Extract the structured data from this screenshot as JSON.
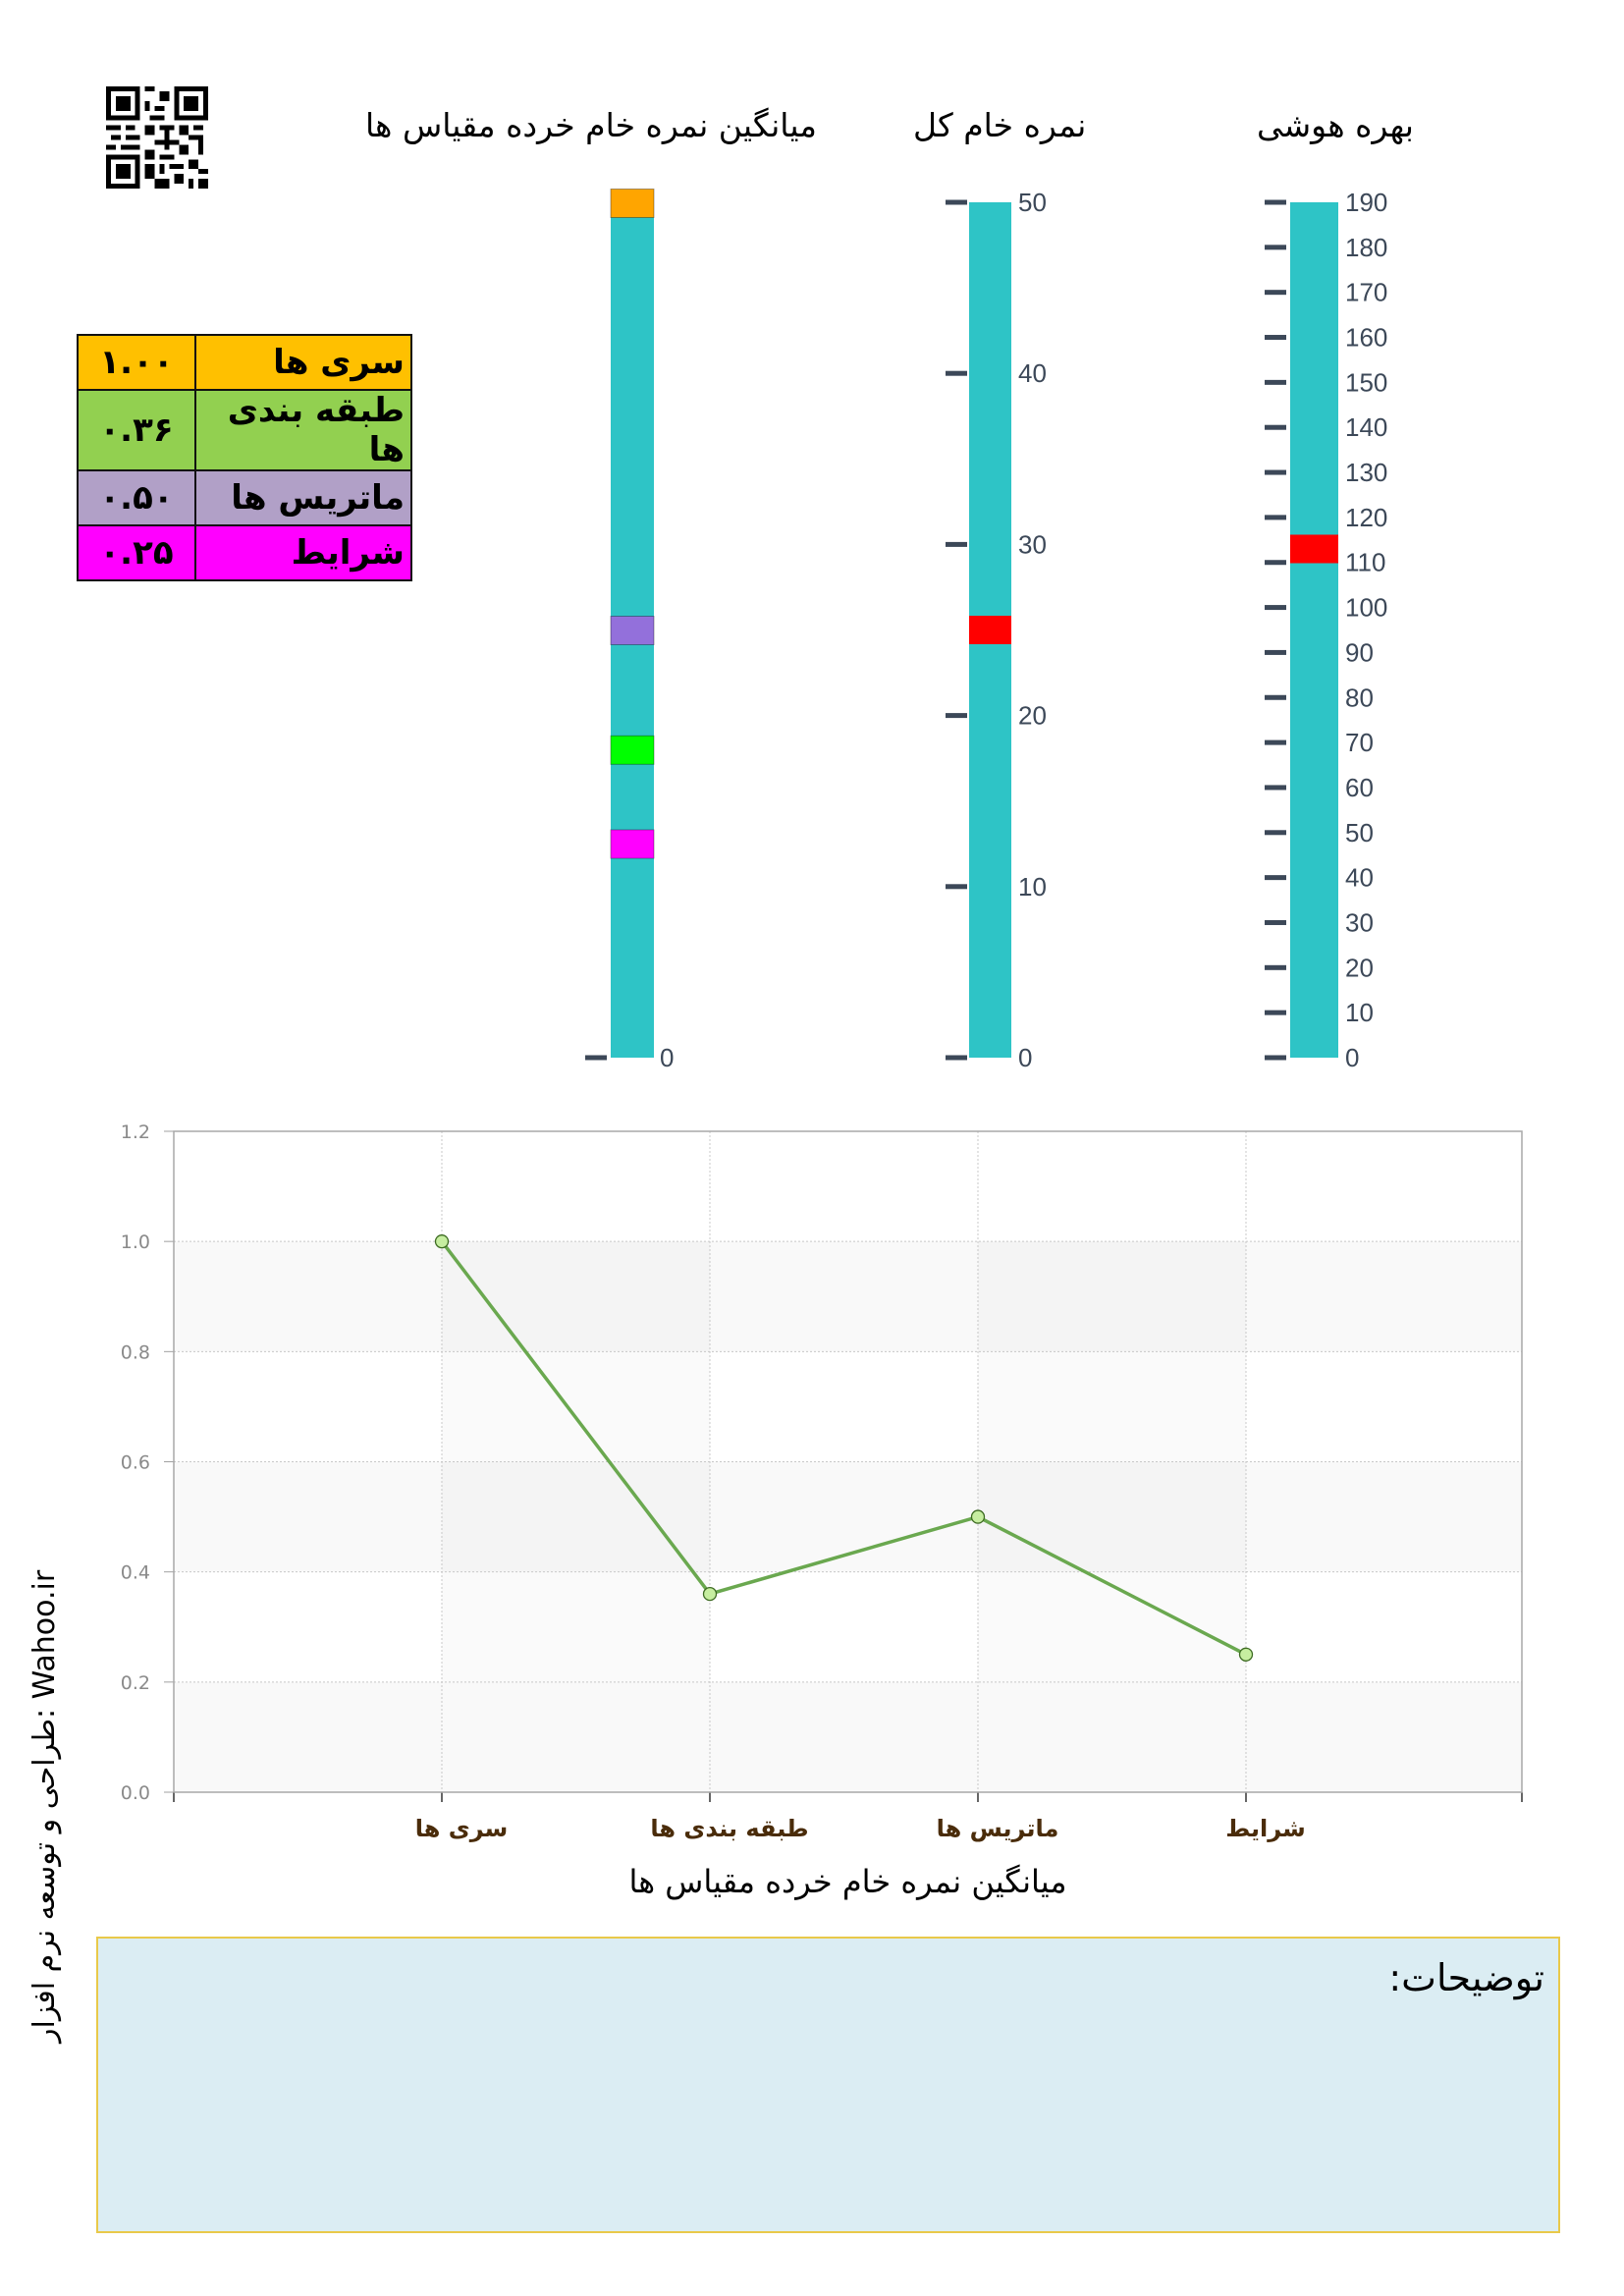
{
  "headers": {
    "subscale_mean": "میانگین نمره خام خرده مقیاس ها",
    "total_raw": "نمره خام کل",
    "iq": "بهره هوشی"
  },
  "summary_table": [
    {
      "label": "سری ها",
      "value": "۱.۰۰",
      "color": "#ffc000"
    },
    {
      "label": "طبقه بندی ها",
      "value": "۰.۳۶",
      "color": "#92d050"
    },
    {
      "label": "ماتریس ها",
      "value": "۰.۵۰",
      "color": "#b1a0c7"
    },
    {
      "label": "شرایط",
      "value": "۰.۲۵",
      "color": "#ff00ff"
    }
  ],
  "colors": {
    "gauge_fill": "#2ec4c6",
    "gauge_tick": "#3c4858",
    "marker_red": "#ff0000",
    "line": "#6aa84f",
    "point_fill": "#c6eea0",
    "notes_bg": "#dbedf3",
    "notes_border": "#e9c94a"
  },
  "chart_data": [
    {
      "type": "gauge",
      "title": "میانگین نمره خام خرده مقیاس ها",
      "range": [
        0,
        1
      ],
      "tick_labels": [
        "0"
      ],
      "markers": [
        {
          "name": "سری ها",
          "value": 1.0,
          "color": "#ffa500"
        },
        {
          "name": "ماتریس ها",
          "value": 0.5,
          "color": "#9370db"
        },
        {
          "name": "طبقه بندی ها",
          "value": 0.36,
          "color": "#00ff00"
        },
        {
          "name": "شرایط",
          "value": 0.25,
          "color": "#ff00ff"
        }
      ]
    },
    {
      "type": "gauge",
      "title": "نمره خام کل",
      "range": [
        0,
        50
      ],
      "ticks": [
        0,
        10,
        20,
        30,
        40,
        50
      ],
      "markers": [
        {
          "name": "نمره خام کل",
          "value": 25,
          "color": "#ff0000"
        }
      ]
    },
    {
      "type": "gauge",
      "title": "بهره هوشی",
      "range": [
        0,
        190
      ],
      "ticks": [
        0,
        10,
        20,
        30,
        40,
        50,
        60,
        70,
        80,
        90,
        100,
        110,
        120,
        130,
        140,
        150,
        160,
        170,
        180,
        190
      ],
      "markers": [
        {
          "name": "بهره هوشی",
          "value": 113,
          "color": "#ff0000"
        }
      ]
    },
    {
      "type": "line",
      "title": "",
      "categories": [
        "سری ها",
        "طبقه بندی ها",
        "ماتریس ها",
        "شرایط"
      ],
      "values": [
        1.0,
        0.36,
        0.5,
        0.25
      ],
      "xlabel": "میانگین نمره خام خرده مقیاس ها",
      "ylabel": "",
      "ylim": [
        0,
        1.2
      ],
      "yticks": [
        "0.0",
        "0.2",
        "0.4",
        "0.6",
        "0.8",
        "1.0",
        "1.2"
      ],
      "grid": true,
      "legend": "none"
    }
  ],
  "notes": {
    "title": "توضیحات:",
    "body": ""
  },
  "credit": "طراحی و توسعه نرم افزار:  Wahoo.ir"
}
